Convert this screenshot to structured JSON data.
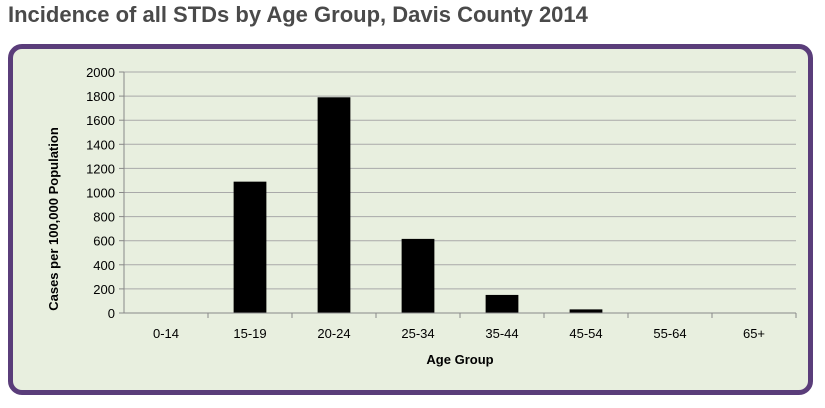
{
  "page": {
    "title": "Incidence of all STDs by Age Group, Davis County 2014"
  },
  "colors": {
    "frame": "#5a3d7a",
    "background": "#e8efdf",
    "bar": "#000000",
    "grid": "#a9a9a9"
  },
  "chart_data": {
    "type": "bar",
    "title": "Incidence of all STDs by Age Group, Davis County 2014",
    "categories": [
      "0-14",
      "15-19",
      "20-24",
      "25-34",
      "35-44",
      "45-54",
      "55-64",
      "65+"
    ],
    "values": [
      0,
      1090,
      1790,
      615,
      150,
      30,
      0,
      0
    ],
    "xlabel": "Age Group",
    "ylabel": "Cases per 100,000 Population",
    "ylim": [
      0,
      2000
    ],
    "yticks": [
      "0",
      "200",
      "400",
      "600",
      "800",
      "1000",
      "1200",
      "1400",
      "1600",
      "1800",
      "2000"
    ],
    "grid": true,
    "legend": "none"
  }
}
